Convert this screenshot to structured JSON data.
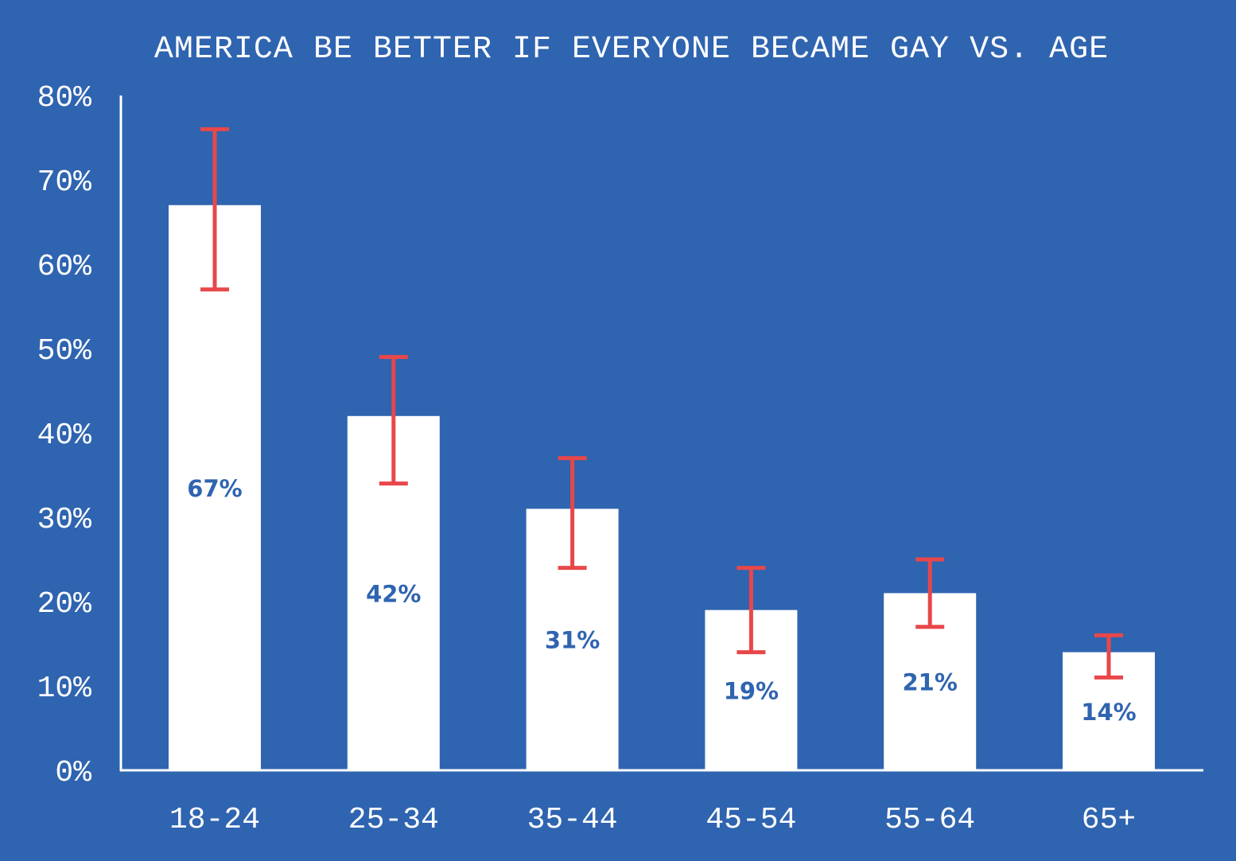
{
  "chart_data": {
    "type": "bar",
    "title": "AMERICA BE BETTER IF EVERYONE BECAME GAY VS. AGE",
    "xlabel": "",
    "ylabel": "",
    "categories": [
      "18-24",
      "25-34",
      "35-44",
      "45-54",
      "55-64",
      "65+"
    ],
    "values": [
      67,
      42,
      31,
      19,
      21,
      14
    ],
    "data_labels": [
      "67%",
      "42%",
      "31%",
      "19%",
      "21%",
      "14%"
    ],
    "error_low": [
      57,
      34,
      24,
      14,
      17,
      11
    ],
    "error_high": [
      76,
      49,
      37,
      24,
      25,
      16
    ],
    "ylim": [
      0,
      80
    ],
    "yticks": [
      "0%",
      "10%",
      "20%",
      "30%",
      "40%",
      "50%",
      "60%",
      "70%",
      "80%"
    ],
    "grid": false,
    "legend": "none",
    "colors": {
      "background": "#2f64b0",
      "bar": "#ffffff",
      "error_bar": "#e8474a",
      "label": "#2f64b0"
    }
  }
}
